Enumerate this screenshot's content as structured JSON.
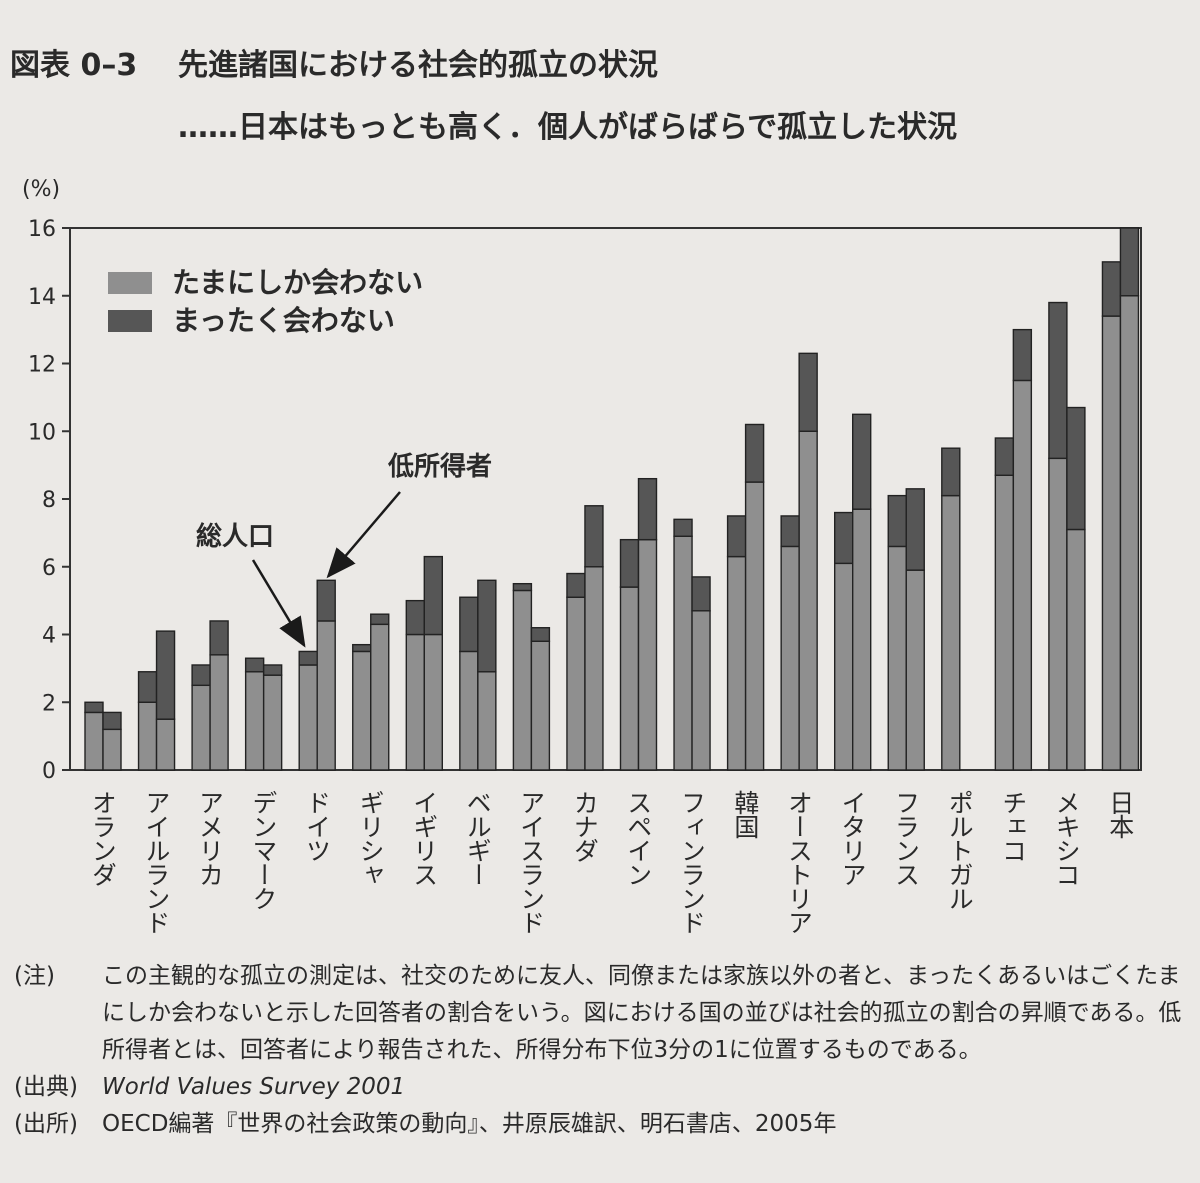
{
  "figure": {
    "number": "図表 0–3",
    "title": "先進諸国における社会的孤立の状況",
    "subtitle": "……日本はもっとも高く．個人がばらばらで孤立した状況"
  },
  "chart_data": {
    "type": "bar",
    "stacked": true,
    "grouped": true,
    "ylabel": "(%)",
    "ylim": [
      0,
      16
    ],
    "yticks": [
      0,
      2,
      4,
      6,
      8,
      10,
      12,
      14,
      16
    ],
    "grid": false,
    "legend_position": "top-left",
    "categories": [
      "オランダ",
      "アイルランド",
      "アメリカ",
      "デンマーク",
      "ドイツ",
      "ギリシャ",
      "イギリス",
      "ベルギー",
      "アイスランド",
      "カナダ",
      "スペイン",
      "フィンランド",
      "韓国",
      "オーストリア",
      "イタリア",
      "フランス",
      "ポルトガル",
      "チェコ",
      "メキシコ",
      "日本"
    ],
    "groups": [
      {
        "name": "総人口",
        "rarely": [
          1.7,
          2.0,
          2.5,
          2.9,
          3.1,
          3.5,
          4.0,
          3.5,
          5.3,
          5.1,
          5.4,
          6.9,
          6.3,
          6.6,
          6.1,
          6.6,
          8.1,
          8.7,
          9.2,
          13.4
        ],
        "never": [
          0.3,
          0.9,
          0.6,
          0.4,
          0.4,
          0.2,
          1.0,
          1.6,
          0.2,
          0.7,
          1.4,
          0.5,
          1.2,
          0.9,
          1.5,
          1.5,
          1.4,
          1.1,
          4.6,
          1.6
        ]
      },
      {
        "name": "低所得者",
        "rarely": [
          1.2,
          1.5,
          3.4,
          2.8,
          4.4,
          4.3,
          4.0,
          2.9,
          3.8,
          6.0,
          6.8,
          4.7,
          8.5,
          10.0,
          7.7,
          5.9,
          null,
          11.5,
          7.1,
          14.0
        ],
        "never": [
          0.5,
          2.6,
          1.0,
          0.3,
          1.2,
          0.3,
          2.3,
          2.7,
          0.4,
          1.8,
          1.8,
          1.0,
          1.7,
          2.3,
          2.8,
          2.4,
          null,
          1.5,
          3.6,
          2.0
        ]
      }
    ],
    "series": [
      {
        "name": "たまにしか会わない",
        "color": "#8f8f8f"
      },
      {
        "name": "まったく会わない",
        "color": "#565656"
      }
    ],
    "annotations": [
      {
        "text": "総人口",
        "target": "ドイツ",
        "group": 0
      },
      {
        "text": "低所得者",
        "target": "ドイツ",
        "group": 1
      }
    ]
  },
  "notes": {
    "note_label": "(注)",
    "note_text": "この主観的な孤立の測定は、社交のために友人、同僚または家族以外の者と、まったくあるいはごくたまにしか会わないと示した回答者の割合をいう。図における国の並びは社会的孤立の割合の昇順である。低所得者とは、回答者により報告された、所得分布下位3分の1に位置するものである。",
    "source_label": "(出典)",
    "source_text": "World Values Survey 2001",
    "origin_label": "(出所)",
    "origin_text": "OECD編著『世界の社会政策の動向』、井原辰雄訳、明石書店、2005年"
  }
}
